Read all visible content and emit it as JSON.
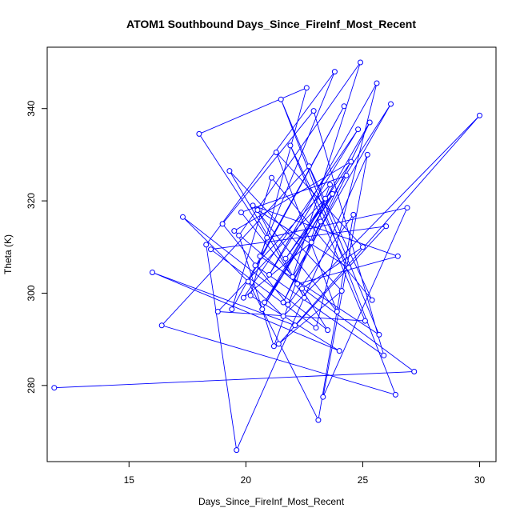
{
  "chart_data": {
    "type": "line",
    "title": "ATOM1 Southbound Days_Since_FireInf_Most_Recent",
    "xlabel": "Days_Since_FireInf_Most_Recent",
    "ylabel": "Theta (K)",
    "xlim": [
      11.5,
      30.7
    ],
    "ylim": [
      263.5,
      353.3
    ],
    "x_ticks": [
      15,
      20,
      25,
      30
    ],
    "y_ticks": [
      280,
      300,
      320,
      340
    ],
    "grid": false,
    "legend": "none",
    "marker": "open-circle",
    "colors": {
      "series": "#0000ff",
      "axes": "#000000",
      "background": "#ffffff"
    },
    "series": [
      {
        "x": [
          11.8,
          27.2,
          22.3,
          23.5,
          17.3,
          21.6,
          30.0,
          22.1,
          16.0,
          24.0,
          20.2,
          22.6,
          18.0,
          20.9,
          26.9,
          23.3,
          25.2,
          19.6,
          18.3,
          23.8,
          20.6,
          25.7,
          21.5,
          26.4,
          16.4,
          22.7,
          25.4,
          21.1,
          19.4,
          24.2,
          20.1,
          23.1,
          24.6,
          21.8,
          19.0,
          22.9,
          25.9,
          20.4,
          23.6,
          21.2,
          19.7,
          24.9,
          22.0,
          26.2,
          20.8,
          23.4,
          18.8,
          25.1,
          21.9,
          24.4,
          20.5,
          22.5,
          19.3,
          24.1,
          21.4,
          26.0,
          18.5,
          23.0,
          25.6,
          21.0,
          24.8,
          19.9,
          22.8,
          25.3,
          20.7,
          23.7,
          21.7,
          24.5,
          19.5,
          22.2,
          26.5,
          20.3,
          23.9,
          21.3,
          25.0,
          22.4,
          19.8,
          24.3,
          21.6,
          23.2
        ],
        "y": [
          279.5,
          283.0,
          301.5,
          292.0,
          316.5,
          295.0,
          338.5,
          293.0,
          304.5,
          287.5,
          299.5,
          344.5,
          334.5,
          312.0,
          318.5,
          277.5,
          330.0,
          266.0,
          310.5,
          348.0,
          308.0,
          291.0,
          342.0,
          278.0,
          293.0,
          327.5,
          298.5,
          325.0,
          296.5,
          340.5,
          302.5,
          272.5,
          317.0,
          297.5,
          315.0,
          339.5,
          286.5,
          306.0,
          323.5,
          288.5,
          312.5,
          350.0,
          303.5,
          341.0,
          298.0,
          320.5,
          296.0,
          294.0,
          332.0,
          305.5,
          318.0,
          299.0,
          326.5,
          300.5,
          289.0,
          314.5,
          309.5,
          292.5,
          345.5,
          304.0,
          335.5,
          299.0,
          311.0,
          337.0,
          296.5,
          321.5,
          307.5,
          328.5,
          313.5,
          302.0,
          308.0,
          319.0,
          296.0,
          330.5,
          310.0,
          301.0,
          317.5,
          325.5,
          298.0,
          315.5
        ]
      }
    ]
  }
}
